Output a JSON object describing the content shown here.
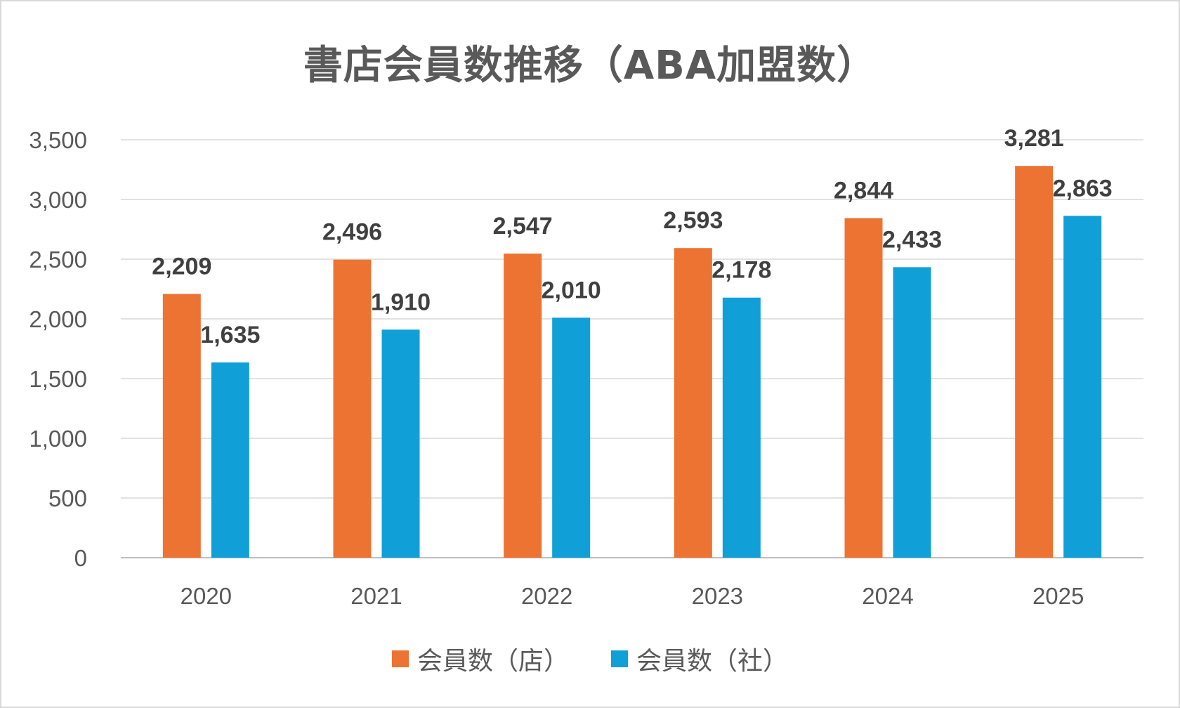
{
  "chart_data": {
    "type": "bar",
    "title": "書店会員数推移（ABA加盟数）",
    "categories": [
      "2020",
      "2021",
      "2022",
      "2023",
      "2024",
      "2025"
    ],
    "series": [
      {
        "name": "会員数（店）",
        "values": [
          2209,
          2496,
          2547,
          2593,
          2844,
          3281
        ],
        "color": "#ed7332"
      },
      {
        "name": "会員数（社）",
        "values": [
          1635,
          1910,
          2010,
          2178,
          2433,
          2863
        ],
        "color": "#119fd8"
      }
    ],
    "data_labels": [
      [
        "2,209",
        "2,496",
        "2,547",
        "2,593",
        "2,844",
        "3,281"
      ],
      [
        "1,635",
        "1,910",
        "2,010",
        "2,178",
        "2,433",
        "2,863"
      ]
    ],
    "ylim": [
      0,
      3500
    ],
    "yticks": [
      "0",
      "500",
      "1,000",
      "1,500",
      "2,000",
      "2,500",
      "3,000",
      "3,500"
    ],
    "grid": true,
    "legend_position": "bottom"
  }
}
